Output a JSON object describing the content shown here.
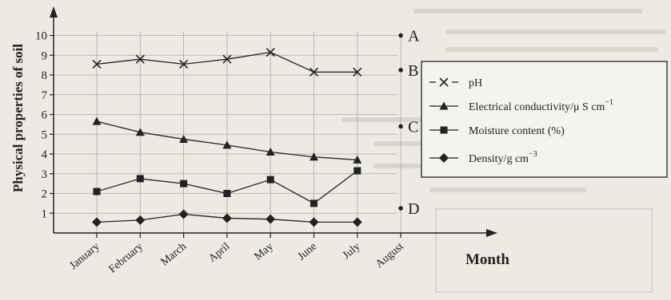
{
  "chart_data": {
    "type": "line",
    "title": "",
    "xlabel": "Month",
    "ylabel": "Physical properties of soil",
    "categories": [
      "January",
      "February",
      "March",
      "April",
      "May",
      "June",
      "July",
      "August"
    ],
    "ylim": [
      0,
      10
    ],
    "yticks": [
      1,
      2,
      3,
      4,
      5,
      6,
      7,
      8,
      9,
      10
    ],
    "grid": true,
    "legend_position": "right",
    "series": [
      {
        "name": "pH",
        "marker": "x",
        "line": "dashed",
        "values": [
          8.55,
          8.8,
          8.55,
          8.8,
          9.15,
          8.15,
          8.15,
          null
        ]
      },
      {
        "name": "Electrical conductivity/μ S cm⁻¹",
        "marker": "triangle",
        "line": "solid",
        "values": [
          5.65,
          5.1,
          4.75,
          4.45,
          4.1,
          3.85,
          3.7,
          null
        ]
      },
      {
        "name": "Moisture content (%)",
        "marker": "square",
        "line": "solid",
        "values": [
          2.1,
          2.75,
          2.5,
          2.0,
          2.7,
          1.5,
          3.15,
          null
        ]
      },
      {
        "name": "Density/g cm⁻³",
        "marker": "diamond",
        "line": "solid",
        "values": [
          0.55,
          0.65,
          0.95,
          0.75,
          0.7,
          0.55,
          0.55,
          null
        ]
      }
    ],
    "labeled_points": [
      {
        "label": "A",
        "category": "August",
        "value": 10.0
      },
      {
        "label": "B",
        "category": "August",
        "value": 8.25
      },
      {
        "label": "C",
        "category": "August",
        "value": 5.4
      },
      {
        "label": "D",
        "category": "August",
        "value": 1.25
      }
    ],
    "legend": {
      "items": [
        {
          "marker": "x",
          "text": "pH",
          "sup": ""
        },
        {
          "marker": "triangle",
          "text": "Electrical conductivity/μ S cm",
          "sup": "−1"
        },
        {
          "marker": "square",
          "text": "Moisture content (%)",
          "sup": ""
        },
        {
          "marker": "diamond",
          "text": "Density/g cm",
          "sup": "−3"
        }
      ]
    }
  }
}
